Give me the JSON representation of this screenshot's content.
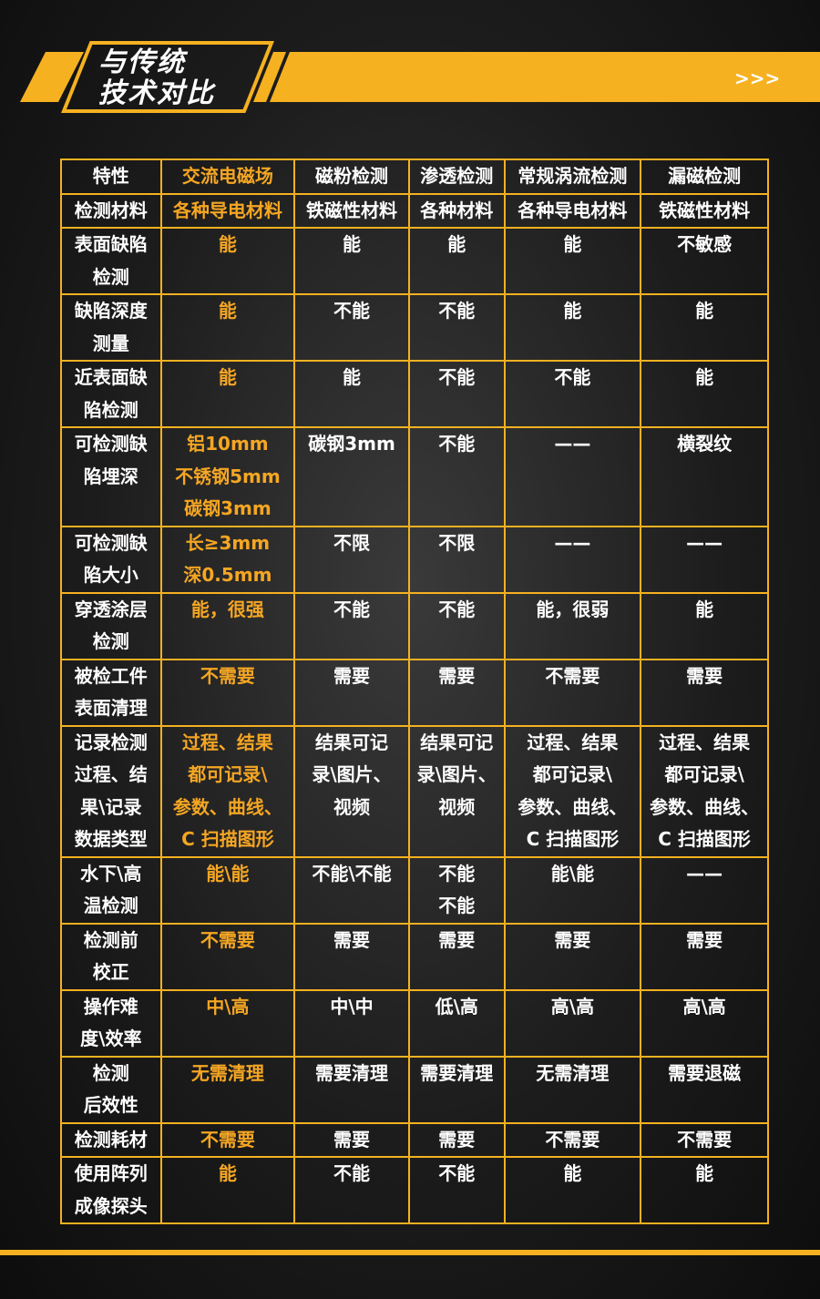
{
  "header": {
    "title": [
      "与传统",
      "技术对比"
    ],
    "arrow": ">>>"
  },
  "table": {
    "header": [
      "特性",
      "交流电磁场",
      "磁粉检测",
      "渗透检测",
      "常规涡流检测",
      "漏磁检测"
    ],
    "rows": [
      [
        [
          "检测材料"
        ],
        [
          "各种导电材料"
        ],
        [
          "铁磁性材料"
        ],
        [
          "各种材料"
        ],
        [
          "各种导电材料"
        ],
        [
          "铁磁性材料"
        ]
      ],
      [
        [
          "表面缺陷",
          "检测"
        ],
        [
          "能"
        ],
        [
          "能"
        ],
        [
          "能"
        ],
        [
          "能"
        ],
        [
          "不敏感"
        ]
      ],
      [
        [
          "缺陷深度",
          "测量"
        ],
        [
          "能"
        ],
        [
          "不能"
        ],
        [
          "不能"
        ],
        [
          "能"
        ],
        [
          "能"
        ]
      ],
      [
        [
          "近表面缺",
          "陷检测"
        ],
        [
          "能"
        ],
        [
          "能"
        ],
        [
          "不能"
        ],
        [
          "不能"
        ],
        [
          "能"
        ]
      ],
      [
        [
          "可检测缺",
          "陷埋深"
        ],
        [
          "铝10mm",
          "不锈钢5mm",
          "碳钢3mm"
        ],
        [
          "碳钢3mm"
        ],
        [
          "不能"
        ],
        [
          "——"
        ],
        [
          "横裂纹"
        ]
      ],
      [
        [
          "可检测缺",
          "陷大小"
        ],
        [
          "长≥3mm",
          "深0.5mm"
        ],
        [
          "不限"
        ],
        [
          "不限"
        ],
        [
          "——"
        ],
        [
          "——"
        ]
      ],
      [
        [
          "穿透涂层",
          "检测"
        ],
        [
          "能，很强"
        ],
        [
          "不能"
        ],
        [
          "不能"
        ],
        [
          "能，很弱"
        ],
        [
          "能"
        ]
      ],
      [
        [
          "被检工件",
          "表面清理"
        ],
        [
          "不需要"
        ],
        [
          "需要"
        ],
        [
          "需要"
        ],
        [
          "不需要"
        ],
        [
          "需要"
        ]
      ],
      [
        [
          "记录检测",
          "过程、结",
          "果\\记录",
          "数据类型"
        ],
        [
          "过程、结果",
          "都可记录\\",
          "参数、曲线、",
          "C 扫描图形"
        ],
        [
          "结果可记",
          "录\\图片、",
          "视频"
        ],
        [
          "结果可记",
          "录\\图片、",
          "视频"
        ],
        [
          "过程、结果",
          "都可记录\\",
          "参数、曲线、",
          "C 扫描图形"
        ],
        [
          "过程、结果",
          "都可记录\\",
          "参数、曲线、",
          "C 扫描图形"
        ]
      ],
      [
        [
          "水下\\高",
          "温检测"
        ],
        [
          "能\\能"
        ],
        [
          "不能\\不能"
        ],
        [
          "不能",
          "不能"
        ],
        [
          "能\\能"
        ],
        [
          "——"
        ]
      ],
      [
        [
          "检测前",
          "校正"
        ],
        [
          "不需要"
        ],
        [
          "需要"
        ],
        [
          "需要"
        ],
        [
          "需要"
        ],
        [
          "需要"
        ]
      ],
      [
        [
          "操作难",
          "度\\效率"
        ],
        [
          "中\\高"
        ],
        [
          "中\\中"
        ],
        [
          "低\\高"
        ],
        [
          "高\\高"
        ],
        [
          "高\\高"
        ]
      ],
      [
        [
          "检测",
          "后效性"
        ],
        [
          "无需清理"
        ],
        [
          "需要清理"
        ],
        [
          "需要清理"
        ],
        [
          "无需清理"
        ],
        [
          "需要退磁"
        ]
      ],
      [
        [
          "检测耗材"
        ],
        [
          "不需要"
        ],
        [
          "需要"
        ],
        [
          "需要"
        ],
        [
          "不需要"
        ],
        [
          "不需要"
        ]
      ],
      [
        [
          "使用阵列",
          "成像探头"
        ],
        [
          "能"
        ],
        [
          "不能"
        ],
        [
          "不能"
        ],
        [
          "能"
        ],
        [
          "能"
        ]
      ]
    ]
  }
}
